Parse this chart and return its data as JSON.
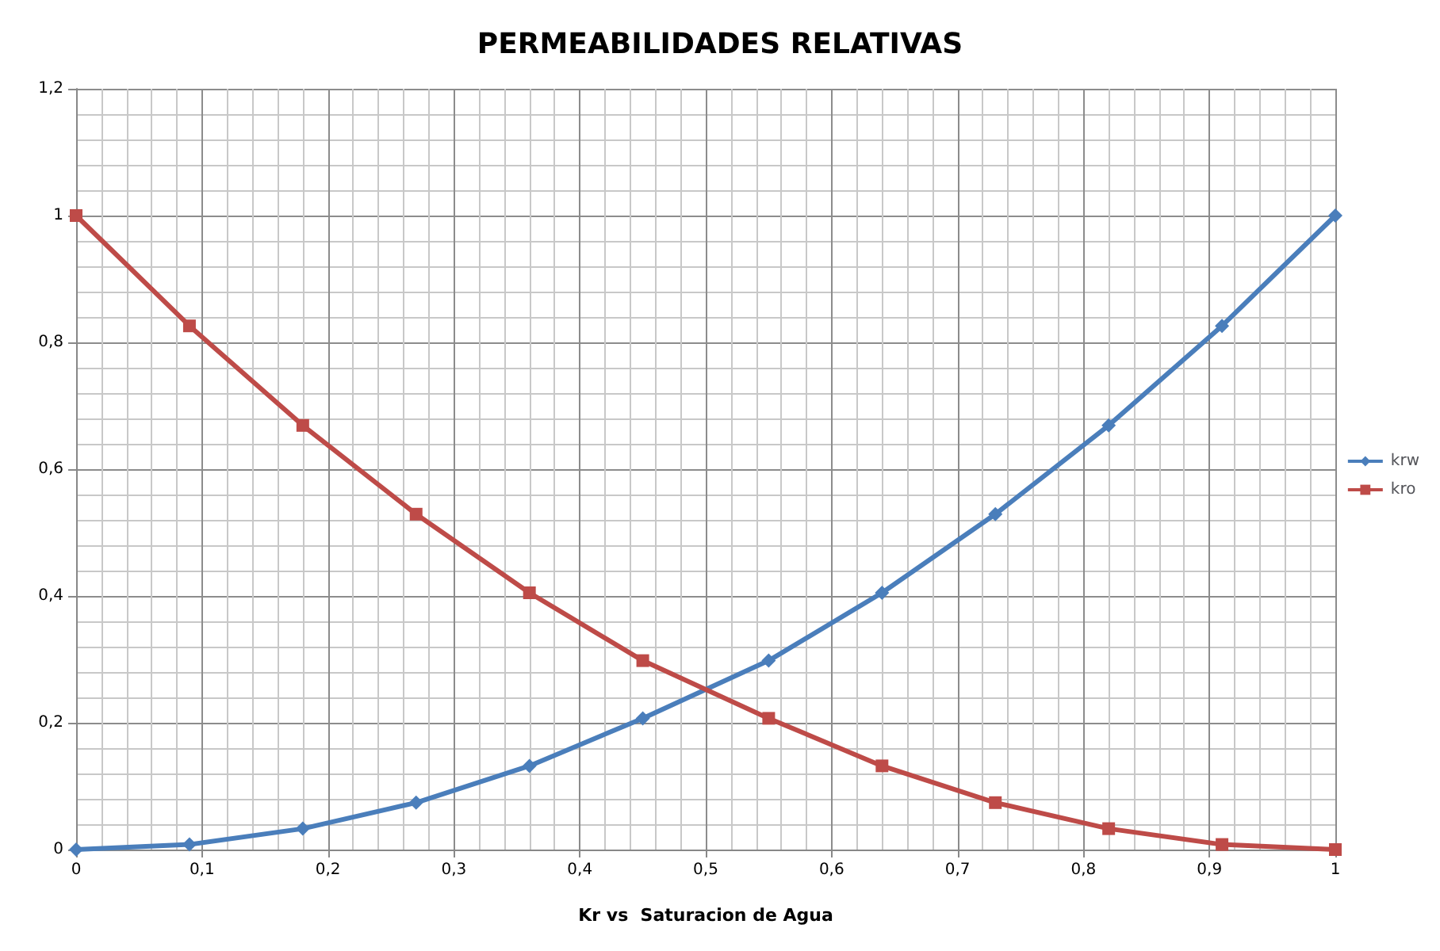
{
  "chart_data": {
    "type": "line",
    "title": "PERMEABILIDADES RELATIVAS",
    "xlabel": "Kr vs  Saturacion de Agua",
    "x": [
      0,
      0.09,
      0.18,
      0.27,
      0.36,
      0.45,
      0.55,
      0.64,
      0.73,
      0.82,
      0.91,
      1
    ],
    "series": [
      {
        "name": "krw",
        "color": "#4a7ebb",
        "marker": "diamond",
        "values": [
          0,
          0.008,
          0.033,
          0.074,
          0.132,
          0.207,
          0.298,
          0.405,
          0.529,
          0.669,
          0.826,
          1
        ]
      },
      {
        "name": "kro",
        "color": "#be4b48",
        "marker": "square",
        "values": [
          1,
          0.826,
          0.669,
          0.529,
          0.405,
          0.298,
          0.207,
          0.132,
          0.074,
          0.033,
          0.008,
          0
        ]
      }
    ],
    "xlim": [
      0,
      1
    ],
    "xticks": [
      0,
      {
        "value": 0.1,
        "label": "0,1"
      },
      {
        "value": 0.2,
        "label": "0,2"
      },
      {
        "value": 0.3,
        "label": "0,3"
      },
      {
        "value": 0.4,
        "label": "0,4"
      },
      {
        "value": 0.5,
        "label": "0,5"
      },
      {
        "value": 0.6,
        "label": "0,6"
      },
      {
        "value": 0.7,
        "label": "0,7"
      },
      {
        "value": 0.8,
        "label": "0,8"
      },
      {
        "value": 0.9,
        "label": "0,9"
      },
      1
    ],
    "ylim": [
      0,
      1.2
    ],
    "yticks": [
      0,
      {
        "value": 0.2,
        "label": "0,2"
      },
      {
        "value": 0.4,
        "label": "0,4"
      },
      {
        "value": 0.6,
        "label": "0,6"
      },
      {
        "value": 0.8,
        "label": "0,8"
      },
      1,
      {
        "value": 1.2,
        "label": "1,2"
      }
    ],
    "grid": true,
    "legend": "right",
    "line_style": "solid"
  }
}
